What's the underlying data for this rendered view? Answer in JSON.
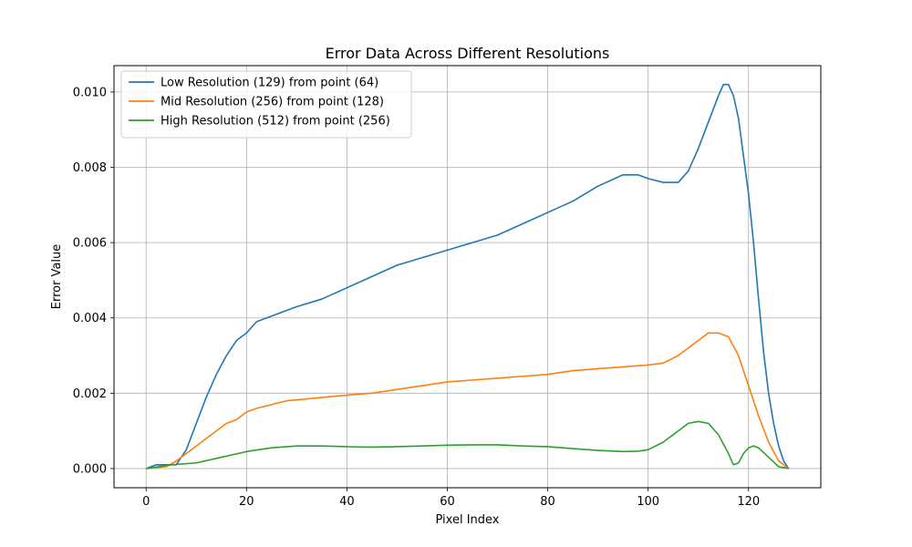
{
  "chart_data": {
    "type": "line",
    "title": "Error Data Across Different Resolutions",
    "xlabel": "Pixel Index",
    "ylabel": "Error Value",
    "xlim": [
      -6.4,
      134.4
    ],
    "ylim": [
      -0.00051,
      0.0107
    ],
    "xticks": [
      0,
      20,
      40,
      60,
      80,
      100,
      120
    ],
    "yticks": [
      0.0,
      0.002,
      0.004,
      0.006,
      0.008,
      0.01
    ],
    "ytick_labels": [
      "0.000",
      "0.002",
      "0.004",
      "0.006",
      "0.008",
      "0.010"
    ],
    "grid": true,
    "legend_position": "upper-left",
    "series": [
      {
        "name": "Low Resolution (129) from point (64)",
        "color": "#1f77b4",
        "points": [
          [
            0,
            0
          ],
          [
            2,
            0.0001
          ],
          [
            4,
            0.0001
          ],
          [
            6,
            0.0001
          ],
          [
            8,
            0.0005
          ],
          [
            10,
            0.0012
          ],
          [
            12,
            0.0019
          ],
          [
            14,
            0.0025
          ],
          [
            16,
            0.003
          ],
          [
            18,
            0.0034
          ],
          [
            20,
            0.0036
          ],
          [
            22,
            0.0039
          ],
          [
            24,
            0.004
          ],
          [
            26,
            0.0041
          ],
          [
            30,
            0.0043
          ],
          [
            35,
            0.0045
          ],
          [
            40,
            0.0048
          ],
          [
            45,
            0.0051
          ],
          [
            50,
            0.0054
          ],
          [
            55,
            0.0056
          ],
          [
            60,
            0.0058
          ],
          [
            65,
            0.006
          ],
          [
            70,
            0.0062
          ],
          [
            75,
            0.0065
          ],
          [
            80,
            0.0068
          ],
          [
            85,
            0.0071
          ],
          [
            90,
            0.0075
          ],
          [
            95,
            0.0078
          ],
          [
            98,
            0.0078
          ],
          [
            100,
            0.0077
          ],
          [
            103,
            0.0076
          ],
          [
            106,
            0.0076
          ],
          [
            108,
            0.0079
          ],
          [
            110,
            0.0085
          ],
          [
            112,
            0.0092
          ],
          [
            114,
            0.0099
          ],
          [
            115,
            0.0102
          ],
          [
            116,
            0.0102
          ],
          [
            117,
            0.0099
          ],
          [
            118,
            0.0093
          ],
          [
            119,
            0.0083
          ],
          [
            120,
            0.0073
          ],
          [
            121,
            0.006
          ],
          [
            122,
            0.0045
          ],
          [
            123,
            0.0031
          ],
          [
            124,
            0.002
          ],
          [
            125,
            0.0012
          ],
          [
            126,
            0.0006
          ],
          [
            127,
            0.0002
          ],
          [
            128,
            0.0
          ]
        ]
      },
      {
        "name": "Mid Resolution (256) from point (128)",
        "color": "#ff7f0e",
        "points": [
          [
            0,
            0
          ],
          [
            4,
            5e-05
          ],
          [
            6,
            0.0002
          ],
          [
            8,
            0.0004
          ],
          [
            10,
            0.0006
          ],
          [
            12,
            0.0008
          ],
          [
            14,
            0.001
          ],
          [
            16,
            0.0012
          ],
          [
            18,
            0.0013
          ],
          [
            20,
            0.0015
          ],
          [
            22,
            0.0016
          ],
          [
            25,
            0.0017
          ],
          [
            28,
            0.0018
          ],
          [
            32,
            0.00185
          ],
          [
            36,
            0.0019
          ],
          [
            40,
            0.00195
          ],
          [
            45,
            0.002
          ],
          [
            50,
            0.0021
          ],
          [
            55,
            0.0022
          ],
          [
            60,
            0.0023
          ],
          [
            65,
            0.00235
          ],
          [
            70,
            0.0024
          ],
          [
            75,
            0.00245
          ],
          [
            80,
            0.0025
          ],
          [
            85,
            0.0026
          ],
          [
            90,
            0.00265
          ],
          [
            95,
            0.0027
          ],
          [
            100,
            0.00275
          ],
          [
            103,
            0.0028
          ],
          [
            106,
            0.003
          ],
          [
            108,
            0.0032
          ],
          [
            110,
            0.0034
          ],
          [
            112,
            0.0036
          ],
          [
            114,
            0.0036
          ],
          [
            116,
            0.0035
          ],
          [
            118,
            0.003
          ],
          [
            120,
            0.0022
          ],
          [
            122,
            0.0014
          ],
          [
            124,
            0.0007
          ],
          [
            126,
            0.0002
          ],
          [
            128,
            0.0
          ]
        ]
      },
      {
        "name": "High Resolution (512) from point (256)",
        "color": "#2ca02c",
        "points": [
          [
            0,
            0
          ],
          [
            5,
            0.0001
          ],
          [
            10,
            0.00015
          ],
          [
            15,
            0.0003
          ],
          [
            20,
            0.00045
          ],
          [
            25,
            0.00055
          ],
          [
            30,
            0.0006
          ],
          [
            35,
            0.0006
          ],
          [
            40,
            0.00058
          ],
          [
            45,
            0.00057
          ],
          [
            50,
            0.00058
          ],
          [
            55,
            0.0006
          ],
          [
            60,
            0.00062
          ],
          [
            65,
            0.00063
          ],
          [
            70,
            0.00063
          ],
          [
            75,
            0.0006
          ],
          [
            80,
            0.00058
          ],
          [
            85,
            0.00053
          ],
          [
            90,
            0.00048
          ],
          [
            95,
            0.00045
          ],
          [
            98,
            0.00046
          ],
          [
            100,
            0.0005
          ],
          [
            103,
            0.0007
          ],
          [
            106,
            0.001
          ],
          [
            108,
            0.0012
          ],
          [
            110,
            0.00125
          ],
          [
            112,
            0.0012
          ],
          [
            114,
            0.0009
          ],
          [
            116,
            0.0004
          ],
          [
            117,
            0.0001
          ],
          [
            118,
            0.00015
          ],
          [
            119,
            0.0004
          ],
          [
            120,
            0.00055
          ],
          [
            121,
            0.0006
          ],
          [
            122,
            0.00055
          ],
          [
            124,
            0.0003
          ],
          [
            126,
            5e-05
          ],
          [
            128,
            0.0
          ]
        ]
      }
    ]
  }
}
